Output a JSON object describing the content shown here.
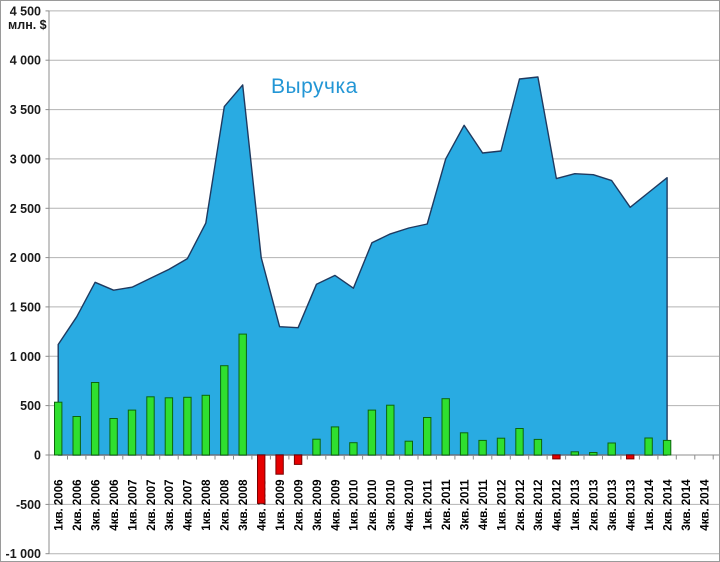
{
  "chart_data": {
    "type": "combo-area-bar",
    "title": "Выручка",
    "ylabel": "млн. $",
    "ylim": [
      -1000,
      4500
    ],
    "ytick_step": 500,
    "ytick_labels": [
      "4 500",
      "4 000",
      "3 500",
      "3 000",
      "2 500",
      "2 000",
      "1 500",
      "1 000",
      "500",
      "0",
      "-500",
      "-1 000"
    ],
    "grid": true,
    "legend_position": "inline-label-over-area",
    "categories": [
      "1кв. 2006",
      "2кв. 2006",
      "3кв. 2006",
      "4кв. 2006",
      "1кв. 2007",
      "2кв. 2007",
      "3кв. 2007",
      "4кв. 2007",
      "1кв. 2008",
      "2кв. 2008",
      "3кв. 2008",
      "4кв. 2008",
      "1кв. 2009",
      "2кв. 2009",
      "3кв. 2009",
      "4кв. 2009",
      "1кв. 2010",
      "2кв. 2010",
      "3кв. 2010",
      "4кв. 2010",
      "1кв. 2011",
      "2кв. 2011",
      "3кв. 2011",
      "4кв. 2011",
      "1кв. 2012",
      "2кв. 2012",
      "3кв. 2012",
      "4кв. 2012",
      "1кв. 2013",
      "2кв. 2013",
      "3кв. 2013",
      "4кв. 2013",
      "1кв. 2014",
      "2кв. 2014",
      "3кв. 2014",
      "4кв. 2014"
    ],
    "series": [
      {
        "name": "Выручка",
        "type": "area",
        "color": "#29ABE2",
        "stroke": "#1F3A60",
        "values": [
          1120,
          1400,
          1750,
          1670,
          1700,
          1790,
          1880,
          1990,
          2350,
          3530,
          3750,
          2000,
          1300,
          1290,
          1730,
          1820,
          1690,
          2150,
          2240,
          2300,
          2340,
          3000,
          3340,
          3060,
          3080,
          3810,
          3830,
          2800,
          2850,
          2840,
          2780,
          2510,
          2660,
          2810,
          null,
          null
        ]
      },
      {
        "name": "",
        "type": "bar",
        "color_positive": "#2FDF2F",
        "color_negative": "#E60000",
        "stroke_positive": "#0C660C",
        "stroke_negative": "#7A0000",
        "values": [
          535,
          390,
          735,
          370,
          455,
          590,
          580,
          585,
          605,
          905,
          1225,
          -490,
          -195,
          -95,
          160,
          285,
          125,
          455,
          505,
          140,
          380,
          570,
          225,
          148,
          170,
          268,
          158,
          -40,
          32,
          25,
          122,
          -40,
          172,
          148,
          null,
          null
        ]
      }
    ],
    "colors": {
      "grid": "#B3B3B3",
      "axis": "#8C8C8C",
      "title": "#2396D5",
      "tick_text": "#1A1A1A"
    }
  }
}
